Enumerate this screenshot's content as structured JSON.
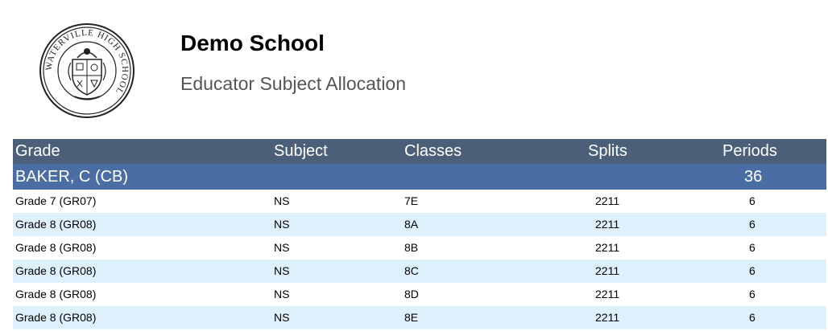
{
  "header": {
    "school_name": "Demo School",
    "report_title": "Educator Subject Allocation",
    "logo_text": "WATERVILLE HIGH SCHOOL"
  },
  "table": {
    "columns": {
      "grade": "Grade",
      "subject": "Subject",
      "classes": "Classes",
      "splits": "Splits",
      "periods": "Periods"
    },
    "group": {
      "name": "BAKER, C (CB)",
      "periods_total": "36"
    },
    "rows": [
      {
        "grade": "Grade 7 (GR07)",
        "subject": "NS",
        "classes": "7E",
        "splits": "2211",
        "periods": "6"
      },
      {
        "grade": "Grade 8 (GR08)",
        "subject": "NS",
        "classes": "8A",
        "splits": "2211",
        "periods": "6"
      },
      {
        "grade": "Grade 8 (GR08)",
        "subject": "NS",
        "classes": "8B",
        "splits": "2211",
        "periods": "6"
      },
      {
        "grade": "Grade 8 (GR08)",
        "subject": "NS",
        "classes": "8C",
        "splits": "2211",
        "periods": "6"
      },
      {
        "grade": "Grade 8 (GR08)",
        "subject": "NS",
        "classes": "8D",
        "splits": "2211",
        "periods": "6"
      },
      {
        "grade": "Grade 8 (GR08)",
        "subject": "NS",
        "classes": "8E",
        "splits": "2211",
        "periods": "6"
      }
    ]
  },
  "colors": {
    "header_bg": "#4b6078",
    "group_bg": "#4a6ea3",
    "alt_row_bg": "#dff0fd"
  }
}
